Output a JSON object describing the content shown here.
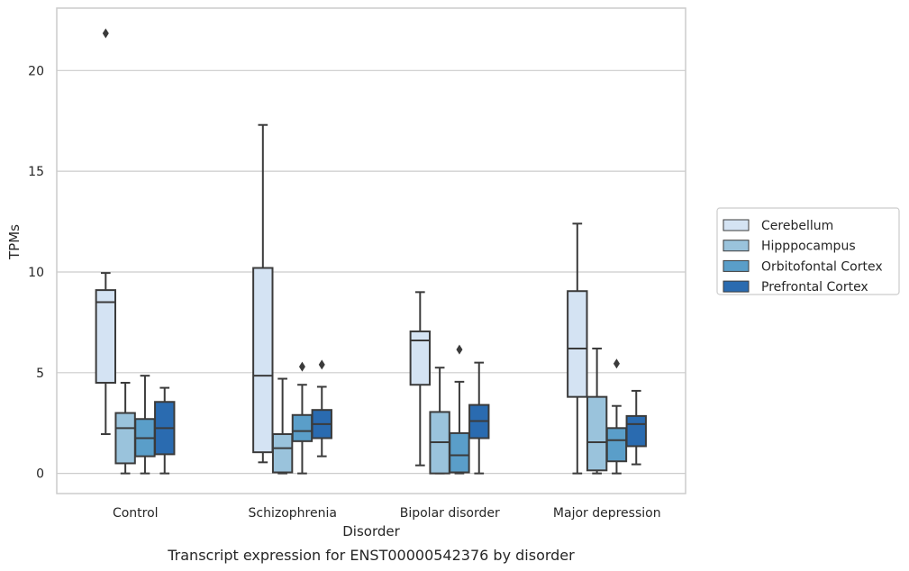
{
  "caption": "Transcript expression for ENST00000542376 by disorder",
  "chart_data": {
    "type": "boxplot",
    "xlabel": "Disorder",
    "ylabel": "TPMs",
    "ylim": [
      -1,
      23.1
    ],
    "yticks": [
      0,
      5,
      10,
      15,
      20
    ],
    "grid": "horizontal",
    "legend_position": "right",
    "categories": [
      "Control",
      "Schizophrenia",
      "Bipolar disorder",
      "Major depression"
    ],
    "series": [
      {
        "name": "Cerebellum",
        "color": "#d4e3f3",
        "boxes": [
          {
            "whisker_low": 1.95,
            "q1": 4.5,
            "median": 8.5,
            "q3": 9.1,
            "whisker_high": 9.95,
            "outliers": [
              21.85
            ]
          },
          {
            "whisker_low": 0.55,
            "q1": 1.05,
            "median": 4.85,
            "q3": 10.2,
            "whisker_high": 17.3,
            "outliers": []
          },
          {
            "whisker_low": 0.4,
            "q1": 4.4,
            "median": 6.6,
            "q3": 7.05,
            "whisker_high": 9.0,
            "outliers": []
          },
          {
            "whisker_low": 0.0,
            "q1": 3.8,
            "median": 6.2,
            "q3": 9.05,
            "whisker_high": 12.4,
            "outliers": []
          }
        ]
      },
      {
        "name": "Hipppocampus",
        "color": "#9ac3dc",
        "boxes": [
          {
            "whisker_low": 0.0,
            "q1": 0.5,
            "median": 2.25,
            "q3": 3.0,
            "whisker_high": 4.5,
            "outliers": []
          },
          {
            "whisker_low": 0.0,
            "q1": 0.05,
            "median": 1.25,
            "q3": 1.95,
            "whisker_high": 4.7,
            "outliers": []
          },
          {
            "whisker_low": 0.0,
            "q1": 0.0,
            "median": 1.55,
            "q3": 3.05,
            "whisker_high": 5.25,
            "outliers": []
          },
          {
            "whisker_low": 0.0,
            "q1": 0.15,
            "median": 1.55,
            "q3": 3.8,
            "whisker_high": 6.2,
            "outliers": []
          }
        ]
      },
      {
        "name": "Orbitofontal Cortex",
        "color": "#5a9ec9",
        "boxes": [
          {
            "whisker_low": 0.0,
            "q1": 0.85,
            "median": 1.75,
            "q3": 2.7,
            "whisker_high": 4.85,
            "outliers": []
          },
          {
            "whisker_low": 0.0,
            "q1": 1.6,
            "median": 2.1,
            "q3": 2.9,
            "whisker_high": 4.4,
            "outliers": [
              5.3
            ]
          },
          {
            "whisker_low": 0.0,
            "q1": 0.05,
            "median": 0.9,
            "q3": 2.0,
            "whisker_high": 4.55,
            "outliers": [
              6.15
            ]
          },
          {
            "whisker_low": 0.0,
            "q1": 0.6,
            "median": 1.65,
            "q3": 2.25,
            "whisker_high": 3.35,
            "outliers": [
              5.45
            ]
          }
        ]
      },
      {
        "name": "Prefrontal Cortex",
        "color": "#2a6bb0",
        "boxes": [
          {
            "whisker_low": 0.0,
            "q1": 0.95,
            "median": 2.25,
            "q3": 3.55,
            "whisker_high": 4.25,
            "outliers": []
          },
          {
            "whisker_low": 0.85,
            "q1": 1.75,
            "median": 2.45,
            "q3": 3.15,
            "whisker_high": 4.3,
            "outliers": [
              5.4
            ]
          },
          {
            "whisker_low": 0.0,
            "q1": 1.75,
            "median": 2.6,
            "q3": 3.4,
            "whisker_high": 5.5,
            "outliers": []
          },
          {
            "whisker_low": 0.45,
            "q1": 1.35,
            "median": 2.45,
            "q3": 2.85,
            "whisker_high": 4.1,
            "outliers": []
          }
        ]
      }
    ]
  }
}
